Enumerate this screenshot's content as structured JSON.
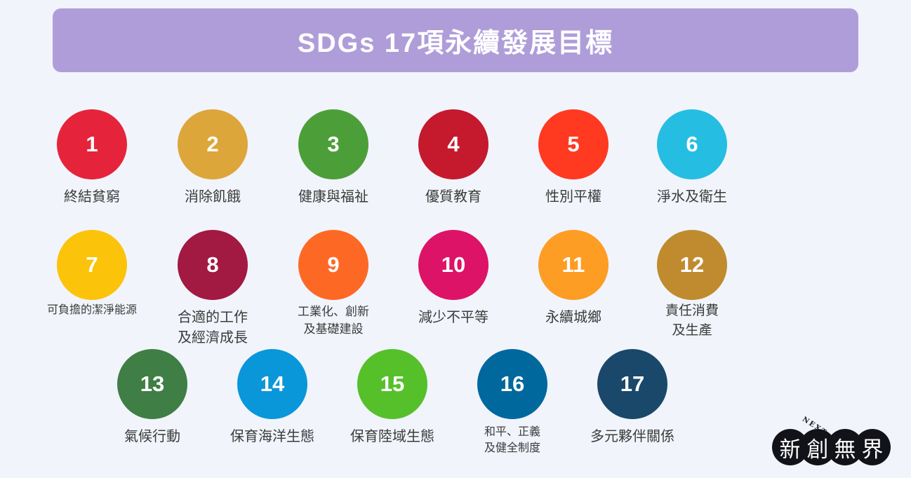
{
  "header": {
    "title": "SDGs 17項永續發展目標",
    "bg_color": "#af9dd9",
    "text_color": "#ffffff"
  },
  "goals": [
    {
      "number": "1",
      "label_lines": [
        "終結貧窮"
      ],
      "color": "#E5243B",
      "row": 1
    },
    {
      "number": "2",
      "label_lines": [
        "消除飢餓"
      ],
      "color": "#DDA63A",
      "row": 1
    },
    {
      "number": "3",
      "label_lines": [
        "健康與福祉"
      ],
      "color": "#4C9F38",
      "row": 1
    },
    {
      "number": "4",
      "label_lines": [
        "優質教育"
      ],
      "color": "#C5192D",
      "row": 1
    },
    {
      "number": "5",
      "label_lines": [
        "性別平權"
      ],
      "color": "#FF3A21",
      "row": 1
    },
    {
      "number": "6",
      "label_lines": [
        "淨水及衛生"
      ],
      "color": "#26BDE2",
      "row": 1
    },
    {
      "number": "7",
      "label_lines": [
        "可負擔的潔淨能源"
      ],
      "color": "#FCC30B",
      "row": 2
    },
    {
      "number": "8",
      "label_lines": [
        "合適的工作",
        "及經濟成長"
      ],
      "color": "#A21942",
      "row": 2
    },
    {
      "number": "9",
      "label_lines": [
        "工業化、創新",
        "及基礎建設"
      ],
      "color": "#FD6925",
      "row": 2
    },
    {
      "number": "10",
      "label_lines": [
        "減少不平等"
      ],
      "color": "#DD1367",
      "row": 2
    },
    {
      "number": "11",
      "label_lines": [
        "永續城鄉"
      ],
      "color": "#FD9D24",
      "row": 2
    },
    {
      "number": "12",
      "label_lines": [
        "責任消費",
        "及生產"
      ],
      "color": "#BF8B2E",
      "row": 2
    },
    {
      "number": "13",
      "label_lines": [
        "氣候行動"
      ],
      "color": "#3F7E44",
      "row": 3
    },
    {
      "number": "14",
      "label_lines": [
        "保育海洋生態"
      ],
      "color": "#0A97D9",
      "row": 3
    },
    {
      "number": "15",
      "label_lines": [
        "保育陸域生態"
      ],
      "color": "#56C02B",
      "row": 3
    },
    {
      "number": "16",
      "label_lines": [
        "和平、正義",
        "及健全制度"
      ],
      "color": "#00689D",
      "row": 3
    },
    {
      "number": "17",
      "label_lines": [
        "多元夥伴關係"
      ],
      "color": "#19486A",
      "row": 3
    }
  ],
  "logo": {
    "rotated_text": "NEXT. V",
    "characters": [
      "新",
      "創",
      "無",
      "界"
    ],
    "circle_color": "#121219",
    "text_color": "#ffffff"
  }
}
